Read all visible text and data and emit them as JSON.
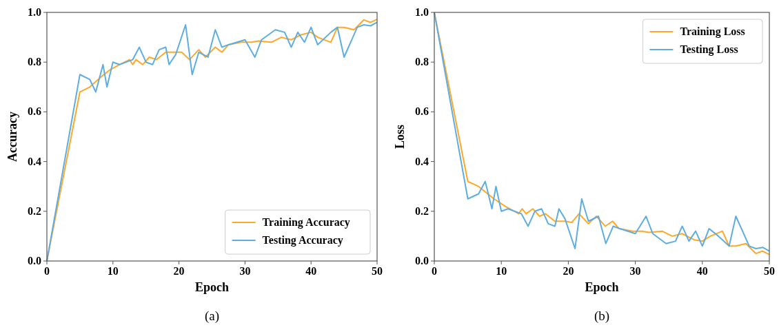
{
  "chart_data": [
    {
      "type": "line",
      "xlabel": "Epoch",
      "ylabel": "Accuracy",
      "xlim": [
        0,
        50
      ],
      "ylim": [
        0,
        1
      ],
      "xticks": [
        0,
        10,
        20,
        30,
        40,
        50
      ],
      "yticks": [
        {
          "value": 0,
          "label": "0.0"
        },
        {
          "value": 0.2,
          "label": "0.2"
        },
        {
          "value": 0.4,
          "label": "0.4"
        },
        {
          "value": 0.6,
          "label": "0.6"
        },
        {
          "value": 0.8,
          "label": "0.8"
        },
        {
          "value": 1,
          "label": "1.0"
        }
      ],
      "grid": false,
      "legend": "bottom right",
      "annotations": [
        "(a)"
      ],
      "series": [
        {
          "name": "Training Accuracy",
          "color": "#ffa726",
          "x": [
            0,
            5,
            6.5,
            8.4,
            9.6,
            11,
            12.5,
            13,
            13.5,
            14.5,
            15.5,
            16.6,
            18,
            20.4,
            21.6,
            23,
            24,
            25.5,
            26.5,
            27.5,
            29.4,
            31,
            32,
            34,
            35.5,
            37,
            38.5,
            40,
            41,
            43,
            44,
            45,
            46.5,
            48,
            49,
            50
          ],
          "values": [
            0,
            0.68,
            0.7,
            0.745,
            0.77,
            0.79,
            0.81,
            0.79,
            0.81,
            0.79,
            0.82,
            0.81,
            0.84,
            0.84,
            0.81,
            0.85,
            0.82,
            0.86,
            0.84,
            0.87,
            0.88,
            0.88,
            0.885,
            0.88,
            0.9,
            0.89,
            0.91,
            0.92,
            0.9,
            0.88,
            0.94,
            0.94,
            0.93,
            0.97,
            0.96,
            0.972
          ]
        },
        {
          "name": "Testing Accuracy",
          "color": "#5dade2",
          "x": [
            0,
            5,
            6.5,
            7.4,
            8.5,
            9.1,
            10,
            11,
            12.5,
            13,
            14,
            15,
            16,
            17,
            18,
            18.5,
            19.5,
            21,
            22,
            23,
            24.4,
            25.5,
            26.5,
            27.5,
            30,
            31.5,
            32.5,
            34.6,
            36,
            37,
            38,
            39,
            40,
            41,
            43,
            44,
            45,
            47,
            48,
            49,
            50
          ],
          "values": [
            0,
            0.75,
            0.73,
            0.68,
            0.79,
            0.7,
            0.8,
            0.79,
            0.805,
            0.81,
            0.86,
            0.8,
            0.79,
            0.85,
            0.86,
            0.79,
            0.83,
            0.95,
            0.75,
            0.84,
            0.82,
            0.93,
            0.86,
            0.87,
            0.89,
            0.82,
            0.89,
            0.93,
            0.92,
            0.86,
            0.92,
            0.88,
            0.94,
            0.87,
            0.92,
            0.94,
            0.82,
            0.94,
            0.95,
            0.946,
            0.96
          ]
        }
      ]
    },
    {
      "type": "line",
      "xlabel": "Epoch",
      "ylabel": "Loss",
      "xlim": [
        0,
        50
      ],
      "ylim": [
        0,
        1
      ],
      "xticks": [
        0,
        10,
        20,
        30,
        40,
        50
      ],
      "yticks": [
        {
          "value": 0,
          "label": "0.0"
        },
        {
          "value": 0.2,
          "label": "0.2"
        },
        {
          "value": 0.4,
          "label": "0.4"
        },
        {
          "value": 0.6,
          "label": "0.6"
        },
        {
          "value": 0.8,
          "label": "0.8"
        },
        {
          "value": 1,
          "label": "1.0"
        }
      ],
      "grid": false,
      "legend": "top right",
      "annotations": [
        "(b)"
      ],
      "series": [
        {
          "name": "Training Loss",
          "color": "#ffa726",
          "x": [
            0,
            5,
            6.6,
            8.9,
            10.6,
            12.6,
            13.1,
            13.7,
            14.7,
            15.7,
            16.6,
            18,
            19.5,
            20.5,
            21.6,
            23,
            24.2,
            25.5,
            26.6,
            27.6,
            29.6,
            31,
            32,
            34,
            35.5,
            37,
            38.8,
            40,
            41.2,
            43,
            44,
            45,
            46.5,
            48,
            49,
            50
          ],
          "values": [
            1,
            0.32,
            0.3,
            0.25,
            0.22,
            0.19,
            0.21,
            0.19,
            0.21,
            0.18,
            0.19,
            0.16,
            0.16,
            0.155,
            0.19,
            0.15,
            0.18,
            0.14,
            0.16,
            0.13,
            0.12,
            0.12,
            0.115,
            0.12,
            0.1,
            0.11,
            0.085,
            0.08,
            0.1,
            0.12,
            0.06,
            0.06,
            0.07,
            0.03,
            0.04,
            0.026
          ]
        },
        {
          "name": "Testing Loss",
          "color": "#5dade2",
          "x": [
            0,
            5,
            6.6,
            7.6,
            8.6,
            9.2,
            10,
            11,
            13,
            14,
            15,
            16,
            17,
            18,
            18.6,
            19.5,
            21,
            22,
            23,
            24.5,
            25.6,
            26.7,
            27.7,
            30,
            31.6,
            32.6,
            34.6,
            36,
            37,
            38,
            39,
            40,
            41,
            42.4,
            44,
            45,
            47,
            48,
            49,
            50
          ],
          "values": [
            1,
            0.25,
            0.27,
            0.32,
            0.21,
            0.3,
            0.2,
            0.21,
            0.19,
            0.14,
            0.2,
            0.21,
            0.15,
            0.14,
            0.21,
            0.17,
            0.05,
            0.25,
            0.16,
            0.18,
            0.07,
            0.14,
            0.13,
            0.11,
            0.18,
            0.11,
            0.07,
            0.08,
            0.14,
            0.08,
            0.12,
            0.06,
            0.13,
            0.1,
            0.06,
            0.18,
            0.06,
            0.05,
            0.055,
            0.04
          ]
        }
      ]
    }
  ]
}
